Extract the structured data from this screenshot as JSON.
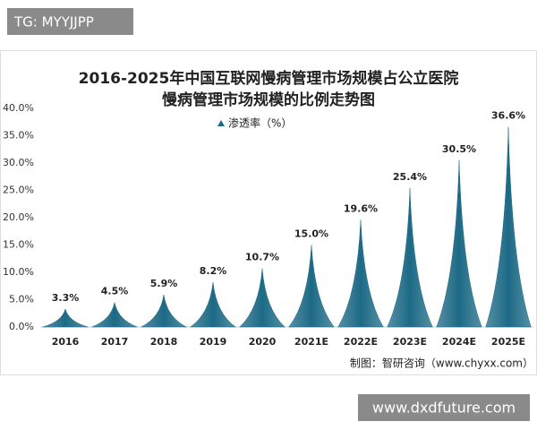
{
  "badge": "TG: MYYJJPP",
  "footer_url": "www.dxdfuture.com",
  "chart_data": {
    "type": "spike",
    "title": [
      "2016-2025年中国互联网慢病管理市场规模占公立医院",
      "慢病管理市场规模的比例走势图"
    ],
    "source": "制图：智研咨询（www.chyxx.com）",
    "categories": [
      "2016",
      "2017",
      "2018",
      "2019",
      "2020",
      "2021E",
      "2022E",
      "2023E",
      "2024E",
      "2025E"
    ],
    "series": [
      {
        "name": "渗透率（%）",
        "color": "#1d6a86",
        "values": [
          3.3,
          4.5,
          5.9,
          8.2,
          10.7,
          15.0,
          19.6,
          25.4,
          30.5,
          36.6
        ],
        "value_labels": [
          "3.3%",
          "4.5%",
          "5.9%",
          "8.2%",
          "10.7%",
          "15.0%",
          "19.6%",
          "25.4%",
          "30.5%",
          "36.6%"
        ]
      }
    ],
    "ylim": [
      0,
      40
    ],
    "yticks": [
      {
        "value": 0,
        "label": "0.0%"
      },
      {
        "value": 5,
        "label": "5.0%"
      },
      {
        "value": 10,
        "label": "10.0%"
      },
      {
        "value": 15,
        "label": "15.0%"
      },
      {
        "value": 20,
        "label": "20.0%"
      },
      {
        "value": 25,
        "label": "25.0%"
      },
      {
        "value": 30,
        "label": "30.0%"
      },
      {
        "value": 35,
        "label": "35.0%"
      },
      {
        "value": 40,
        "label": "40.0%"
      }
    ],
    "grid": false
  }
}
